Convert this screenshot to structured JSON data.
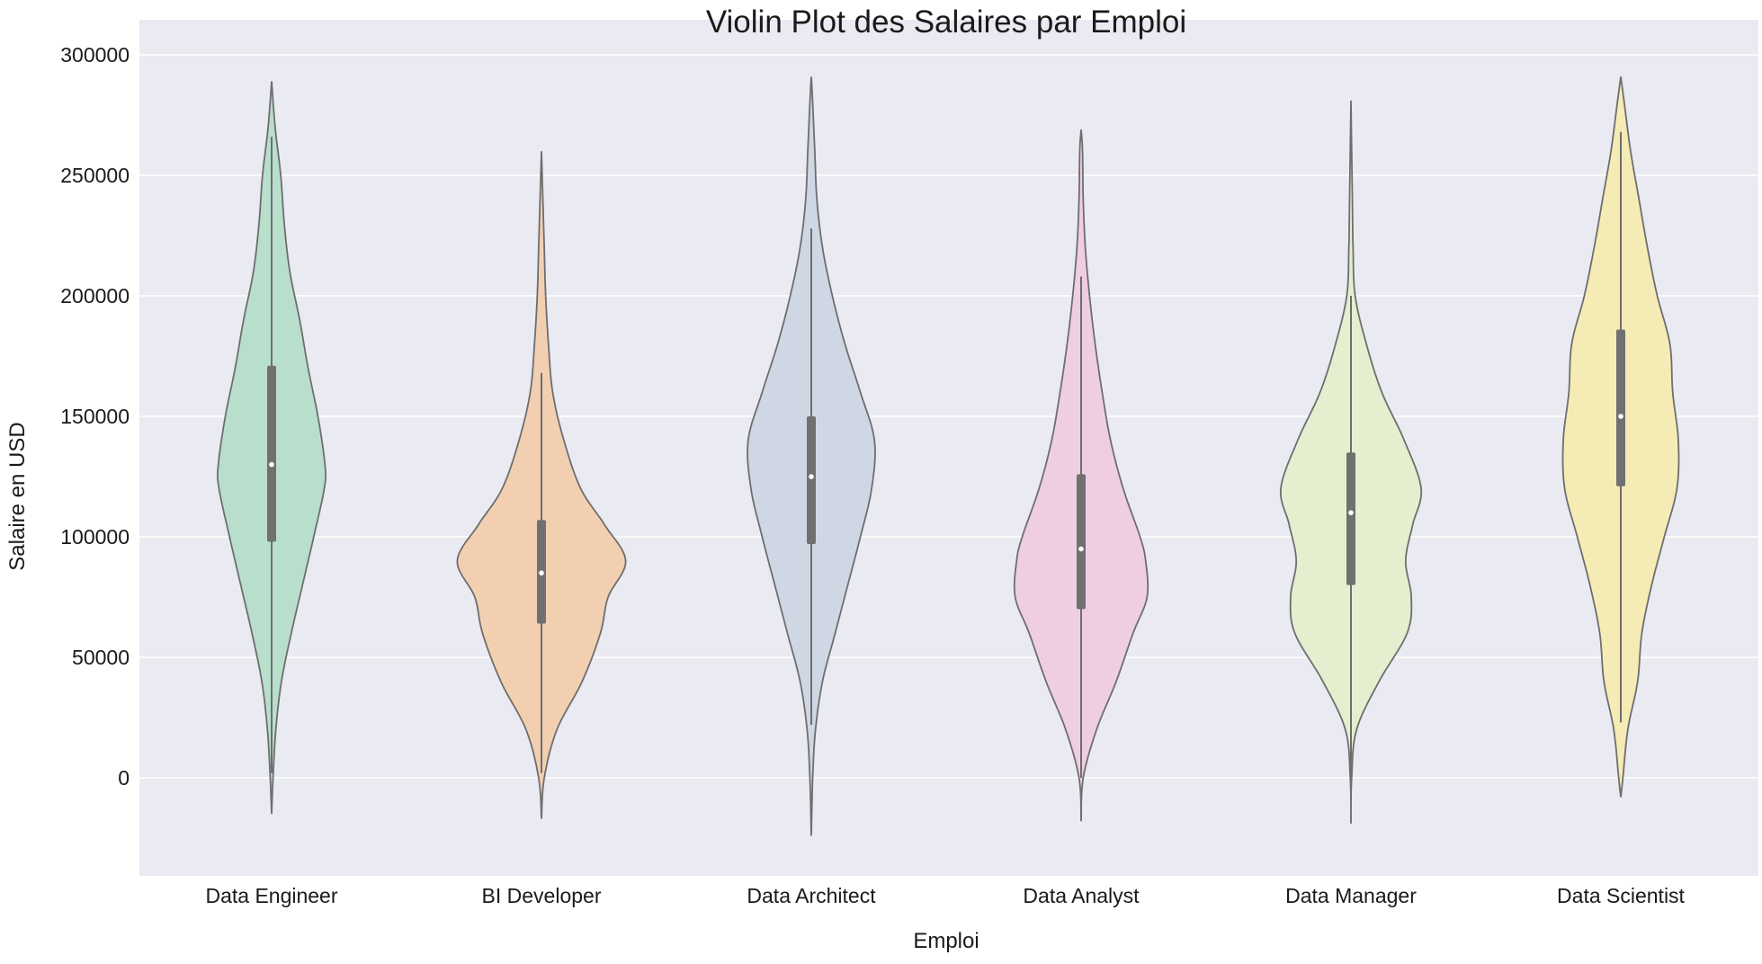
{
  "chart_data": {
    "type": "violin",
    "title": "Violin Plot des Salaires par Emploi",
    "xlabel": "Emploi",
    "ylabel": "Salaire en USD",
    "ylim": [
      -40000,
      305000
    ],
    "yticks": [
      0,
      50000,
      100000,
      150000,
      200000,
      250000,
      300000
    ],
    "grid": true,
    "legend": "none",
    "categories": [
      "Data Engineer",
      "BI Developer",
      "Data Architect",
      "Data Analyst",
      "Data Manager",
      "Data Scientist"
    ],
    "colors": [
      "#b8dfcc",
      "#f3cfb2",
      "#cfd7e4",
      "#efcee3",
      "#e4efcf",
      "#f5ebb5"
    ],
    "series": [
      {
        "category": "Data Engineer",
        "whisker_min": 2000,
        "q1": 98000,
        "median": 130000,
        "q3": 171000,
        "whisker_max": 266000,
        "density": [
          [
            -15000,
            0
          ],
          [
            0,
            2
          ],
          [
            20000,
            6
          ],
          [
            40000,
            14
          ],
          [
            60000,
            28
          ],
          [
            80000,
            44
          ],
          [
            100000,
            60
          ],
          [
            120000,
            75
          ],
          [
            130000,
            76
          ],
          [
            150000,
            66
          ],
          [
            170000,
            52
          ],
          [
            190000,
            40
          ],
          [
            210000,
            26
          ],
          [
            230000,
            18
          ],
          [
            250000,
            13
          ],
          [
            270000,
            5
          ],
          [
            289000,
            0
          ]
        ]
      },
      {
        "category": "BI Developer",
        "whisker_min": 2000,
        "q1": 64000,
        "median": 85000,
        "q3": 107000,
        "whisker_max": 168000,
        "density": [
          [
            -17000,
            0
          ],
          [
            0,
            4
          ],
          [
            20000,
            22
          ],
          [
            40000,
            58
          ],
          [
            60000,
            84
          ],
          [
            75000,
            95
          ],
          [
            90000,
            120
          ],
          [
            105000,
            90
          ],
          [
            120000,
            56
          ],
          [
            140000,
            32
          ],
          [
            160000,
            16
          ],
          [
            180000,
            10
          ],
          [
            200000,
            6
          ],
          [
            220000,
            4
          ],
          [
            240000,
            2
          ],
          [
            260000,
            0
          ]
        ]
      },
      {
        "category": "Data Architect",
        "whisker_min": 22000,
        "q1": 97000,
        "median": 125000,
        "q3": 150000,
        "whisker_max": 228000,
        "density": [
          [
            -24000,
            0
          ],
          [
            0,
            2
          ],
          [
            20000,
            6
          ],
          [
            40000,
            16
          ],
          [
            60000,
            34
          ],
          [
            80000,
            52
          ],
          [
            100000,
            70
          ],
          [
            120000,
            86
          ],
          [
            140000,
            90
          ],
          [
            160000,
            70
          ],
          [
            180000,
            48
          ],
          [
            200000,
            30
          ],
          [
            220000,
            16
          ],
          [
            240000,
            8
          ],
          [
            260000,
            5
          ],
          [
            280000,
            2
          ],
          [
            291000,
            0
          ]
        ]
      },
      {
        "category": "Data Analyst",
        "whisker_min": 0,
        "q1": 70000,
        "median": 95000,
        "q3": 126000,
        "whisker_max": 208000,
        "density": [
          [
            -18000,
            0
          ],
          [
            0,
            3
          ],
          [
            20000,
            22
          ],
          [
            40000,
            50
          ],
          [
            60000,
            74
          ],
          [
            75000,
            94
          ],
          [
            90000,
            92
          ],
          [
            100000,
            84
          ],
          [
            120000,
            60
          ],
          [
            140000,
            42
          ],
          [
            160000,
            30
          ],
          [
            180000,
            20
          ],
          [
            200000,
            12
          ],
          [
            220000,
            6
          ],
          [
            240000,
            3
          ],
          [
            260000,
            2
          ],
          [
            269000,
            0
          ]
        ]
      },
      {
        "category": "Data Manager",
        "whisker_min": 0,
        "q1": 80000,
        "median": 110000,
        "q3": 135000,
        "whisker_max": 200000,
        "density": [
          [
            -19000,
            0
          ],
          [
            0,
            1
          ],
          [
            20000,
            8
          ],
          [
            40000,
            40
          ],
          [
            60000,
            80
          ],
          [
            75000,
            86
          ],
          [
            90000,
            78
          ],
          [
            105000,
            88
          ],
          [
            120000,
            100
          ],
          [
            140000,
            76
          ],
          [
            160000,
            44
          ],
          [
            180000,
            22
          ],
          [
            200000,
            6
          ],
          [
            220000,
            3
          ],
          [
            240000,
            2
          ],
          [
            260000,
            1
          ],
          [
            281000,
            0
          ]
        ]
      },
      {
        "category": "Data Scientist",
        "whisker_min": 23000,
        "q1": 121000,
        "median": 150000,
        "q3": 186000,
        "whisker_max": 268000,
        "density": [
          [
            -8000,
            0
          ],
          [
            0,
            3
          ],
          [
            20000,
            10
          ],
          [
            40000,
            24
          ],
          [
            60000,
            30
          ],
          [
            80000,
            44
          ],
          [
            100000,
            62
          ],
          [
            120000,
            80
          ],
          [
            140000,
            82
          ],
          [
            160000,
            74
          ],
          [
            180000,
            70
          ],
          [
            200000,
            52
          ],
          [
            220000,
            38
          ],
          [
            240000,
            26
          ],
          [
            260000,
            14
          ],
          [
            280000,
            5
          ],
          [
            291000,
            0
          ]
        ]
      }
    ]
  }
}
